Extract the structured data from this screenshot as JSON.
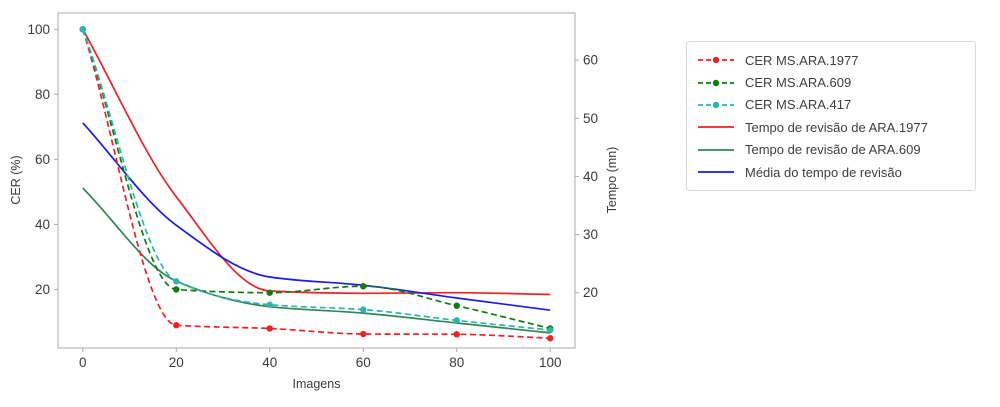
{
  "figure": {
    "background": "#ffffff",
    "spine_color": "#ababab",
    "text_color": "#3b3b3b"
  },
  "chart_data": {
    "type": "line",
    "title": "",
    "xlabel": "Imagens",
    "ylabel_left": "CER (%)",
    "ylabel_right": "Tempo (mn)",
    "x": [
      0,
      20,
      40,
      60,
      80,
      100
    ],
    "xlim": [
      -5.3,
      105.3
    ],
    "ylim_left": [
      2,
      105
    ],
    "ylim_right": [
      10.5,
      68.1
    ],
    "xticks": [
      0,
      20,
      40,
      60,
      80,
      100
    ],
    "yticks_left": [
      20,
      40,
      60,
      80,
      100
    ],
    "yticks_right": [
      20,
      30,
      40,
      50,
      60
    ],
    "grid": false,
    "legend_position": "outside-right",
    "series": [
      {
        "name": "CER MS.ARA.1977",
        "axis": "left",
        "style": "dashed",
        "marker": true,
        "color": "#ef2125",
        "values": [
          100,
          9,
          8,
          6.3,
          6.2,
          5
        ]
      },
      {
        "name": "CER MS.ARA.609",
        "axis": "left",
        "style": "dashed",
        "marker": true,
        "color": "#0c7c10",
        "values": [
          100,
          20,
          19,
          21,
          15,
          8
        ]
      },
      {
        "name": "CER MS.ARA.417",
        "axis": "left",
        "style": "dashed",
        "marker": true,
        "color": "#2db4ab",
        "values": [
          100,
          22.5,
          15.3,
          13.8,
          10.5,
          7.5
        ]
      },
      {
        "name": "Tempo de revisão de ARA.1977",
        "axis": "right",
        "style": "solid",
        "marker": false,
        "color": "#ef2125",
        "values": [
          65.3,
          36.5,
          20.3,
          19.9,
          20,
          19.7
        ]
      },
      {
        "name": "Tempo de revisão de ARA.609",
        "axis": "right",
        "style": "solid",
        "marker": false,
        "color": "#338555",
        "values": [
          38,
          22,
          17.6,
          16.5,
          14.8,
          13.1
        ]
      },
      {
        "name": "Média do tempo de revisão",
        "axis": "right",
        "style": "solid",
        "marker": false,
        "color": "#1a1aee",
        "values": [
          49.2,
          31.6,
          22.7,
          21.3,
          19.1,
          17
        ]
      }
    ]
  }
}
